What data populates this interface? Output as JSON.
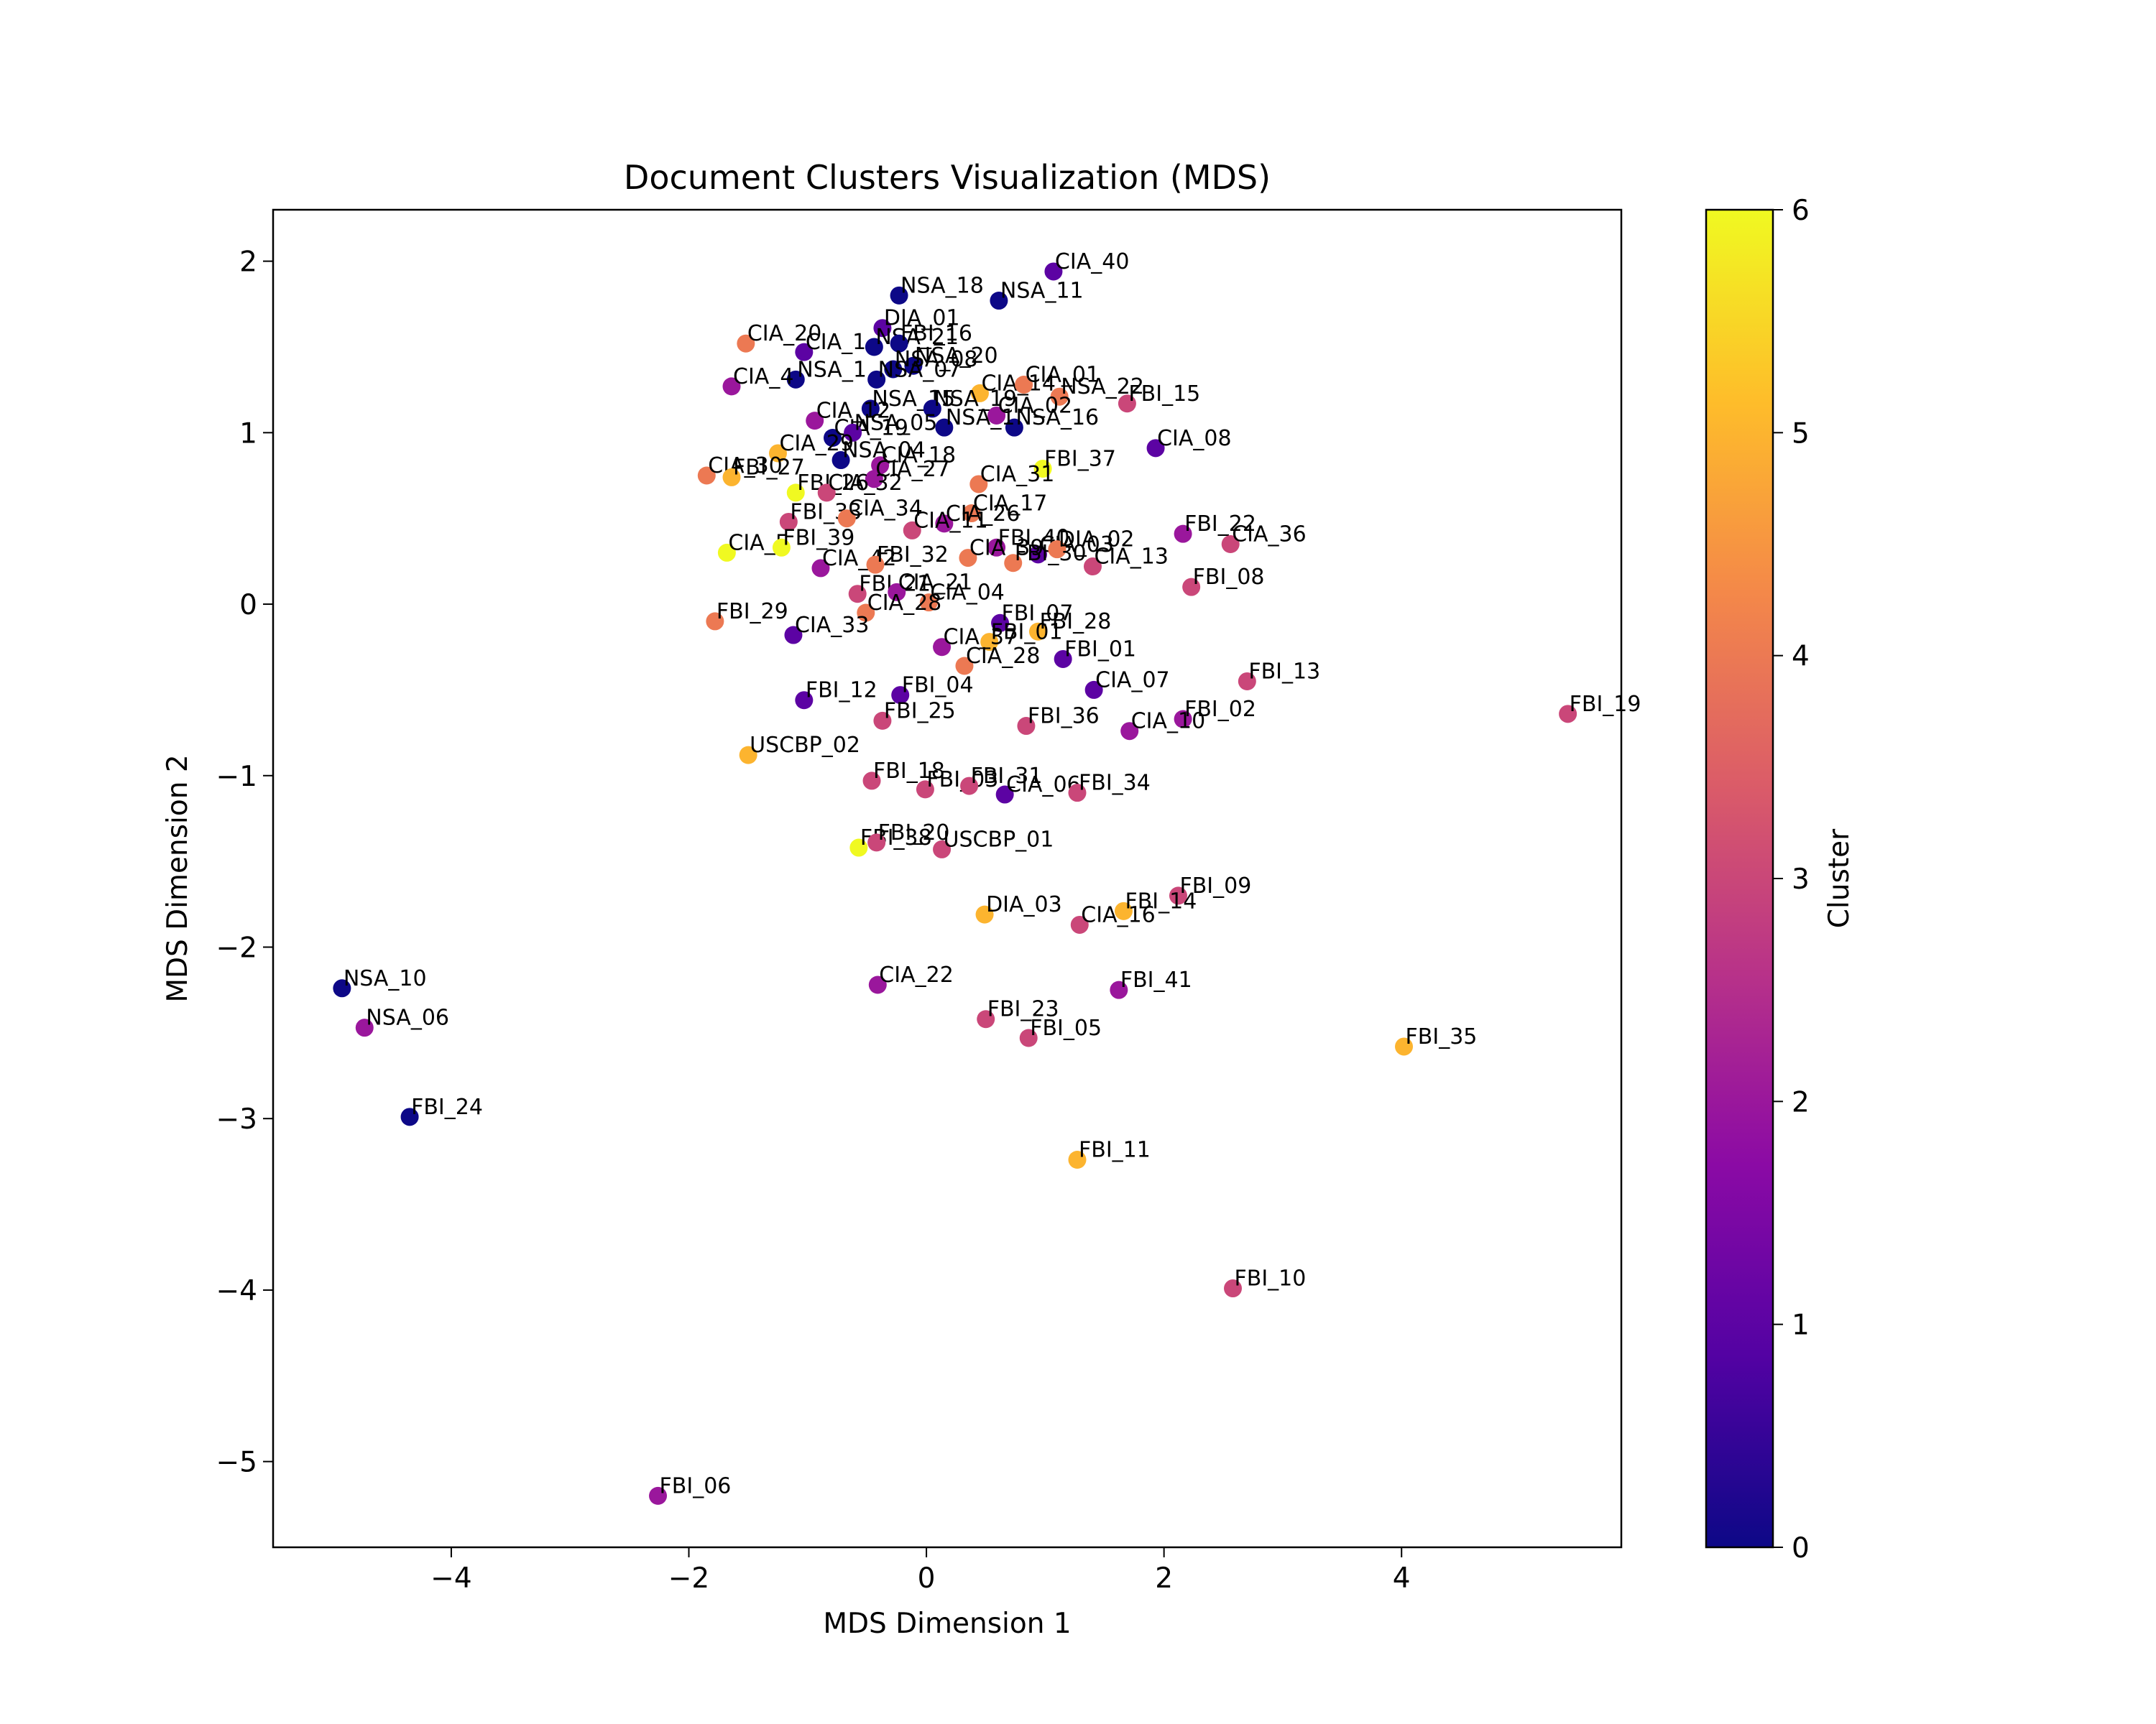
{
  "chart_data": {
    "type": "scatter",
    "title": "Document Clusters Visualization (MDS)",
    "xlabel": "MDS Dimension 1",
    "ylabel": "MDS Dimension 2",
    "xlim": [
      -5.5,
      5.85
    ],
    "ylim": [
      -5.5,
      2.3
    ],
    "xticks": [
      -4,
      -2,
      0,
      2,
      4
    ],
    "yticks": [
      -5,
      -4,
      -3,
      -2,
      -1,
      0,
      1,
      2
    ],
    "grid": false,
    "colormap": "plasma",
    "colorbar": {
      "label": "Cluster",
      "range": [
        0,
        6
      ],
      "ticks": [
        0,
        1,
        2,
        3,
        4,
        5,
        6
      ]
    },
    "points": [
      {
        "label": "CIA_40",
        "x": 1.07,
        "y": 1.94,
        "cluster": 1
      },
      {
        "label": "NSA_18",
        "x": -0.23,
        "y": 1.8,
        "cluster": 0
      },
      {
        "label": "NSA_11",
        "x": 0.61,
        "y": 1.77,
        "cluster": 0
      },
      {
        "label": "DIA_01",
        "x": -0.37,
        "y": 1.61,
        "cluster": 1
      },
      {
        "label": "CIA_20",
        "x": -1.52,
        "y": 1.52,
        "cluster": 4
      },
      {
        "label": "CIA_1",
        "x": -1.03,
        "y": 1.47,
        "cluster": 1
      },
      {
        "label": "NSA_21",
        "x": -0.44,
        "y": 1.5,
        "cluster": 0
      },
      {
        "label": "FBI_16",
        "x": -0.23,
        "y": 1.52,
        "cluster": 0
      },
      {
        "label": "NSA_20",
        "x": -0.11,
        "y": 1.39,
        "cluster": 0
      },
      {
        "label": "NSA_08",
        "x": -0.28,
        "y": 1.37,
        "cluster": 0
      },
      {
        "label": "NSA_07",
        "x": -0.42,
        "y": 1.31,
        "cluster": 0
      },
      {
        "label": "NSA_1",
        "x": -1.1,
        "y": 1.31,
        "cluster": 0
      },
      {
        "label": "CIA_4",
        "x": -1.64,
        "y": 1.27,
        "cluster": 2
      },
      {
        "label": "CIA_14",
        "x": 0.45,
        "y": 1.23,
        "cluster": 5
      },
      {
        "label": "CIA_01",
        "x": 0.82,
        "y": 1.28,
        "cluster": 4
      },
      {
        "label": "NSA_22",
        "x": 1.12,
        "y": 1.21,
        "cluster": 4
      },
      {
        "label": "FBI_15",
        "x": 1.69,
        "y": 1.17,
        "cluster": 3
      },
      {
        "label": "NSA_15",
        "x": -0.47,
        "y": 1.14,
        "cluster": 0
      },
      {
        "label": "NSA_19",
        "x": 0.05,
        "y": 1.14,
        "cluster": 0
      },
      {
        "label": "CIA_02",
        "x": 0.59,
        "y": 1.1,
        "cluster": 2
      },
      {
        "label": "NSA_16",
        "x": 0.74,
        "y": 1.03,
        "cluster": 0
      },
      {
        "label": "NSA_1",
        "x": 0.15,
        "y": 1.03,
        "cluster": 0
      },
      {
        "label": "CIA_08",
        "x": 1.93,
        "y": 0.91,
        "cluster": 1
      },
      {
        "label": "CIA_12",
        "x": -0.94,
        "y": 1.07,
        "cluster": 2
      },
      {
        "label": "CIA_19",
        "x": -0.79,
        "y": 0.97,
        "cluster": 0
      },
      {
        "label": "NSA_05",
        "x": -0.62,
        "y": 1.0,
        "cluster": 1
      },
      {
        "label": "CIA_29",
        "x": -1.25,
        "y": 0.88,
        "cluster": 5
      },
      {
        "label": "NSA_04",
        "x": -0.72,
        "y": 0.84,
        "cluster": 0
      },
      {
        "label": "CIA_18",
        "x": -0.39,
        "y": 0.81,
        "cluster": 2
      },
      {
        "label": "FBI_37",
        "x": 0.98,
        "y": 0.79,
        "cluster": 6
      },
      {
        "label": "CIA_30",
        "x": -1.85,
        "y": 0.75,
        "cluster": 4
      },
      {
        "label": "FBI_27",
        "x": -1.64,
        "y": 0.74,
        "cluster": 5
      },
      {
        "label": "CIA_27",
        "x": -0.44,
        "y": 0.73,
        "cluster": 2
      },
      {
        "label": "CIA_31",
        "x": 0.44,
        "y": 0.7,
        "cluster": 4
      },
      {
        "label": "FBI_26",
        "x": -1.1,
        "y": 0.65,
        "cluster": 6
      },
      {
        "label": "CIA_32",
        "x": -0.84,
        "y": 0.65,
        "cluster": 3
      },
      {
        "label": "CIA_17",
        "x": 0.38,
        "y": 0.53,
        "cluster": 4
      },
      {
        "label": "FBI_33",
        "x": -1.16,
        "y": 0.48,
        "cluster": 3
      },
      {
        "label": "CIA_34",
        "x": -0.67,
        "y": 0.5,
        "cluster": 4
      },
      {
        "label": "CIA_26",
        "x": 0.15,
        "y": 0.47,
        "cluster": 2
      },
      {
        "label": "CIA_11",
        "x": -0.12,
        "y": 0.43,
        "cluster": 3
      },
      {
        "label": "FBI_22",
        "x": 2.16,
        "y": 0.41,
        "cluster": 2
      },
      {
        "label": "CIA_36",
        "x": 2.56,
        "y": 0.35,
        "cluster": 3
      },
      {
        "label": "CIA_5",
        "x": -1.68,
        "y": 0.3,
        "cluster": 6
      },
      {
        "label": "FBI_39",
        "x": -1.22,
        "y": 0.33,
        "cluster": 6
      },
      {
        "label": "FBI_40",
        "x": 0.59,
        "y": 0.33,
        "cluster": 2
      },
      {
        "label": "CIA_03",
        "x": 0.94,
        "y": 0.29,
        "cluster": 1
      },
      {
        "label": "CIA_39",
        "x": 0.35,
        "y": 0.27,
        "cluster": 4
      },
      {
        "label": "DIA_02",
        "x": 1.1,
        "y": 0.32,
        "cluster": 4
      },
      {
        "label": "FBI_30",
        "x": 0.73,
        "y": 0.24,
        "cluster": 4
      },
      {
        "label": "CIA_42",
        "x": -0.89,
        "y": 0.21,
        "cluster": 2
      },
      {
        "label": "CIA_13",
        "x": 1.4,
        "y": 0.22,
        "cluster": 3
      },
      {
        "label": "FBI_32",
        "x": -0.43,
        "y": 0.23,
        "cluster": 4
      },
      {
        "label": "FBI_08",
        "x": 2.23,
        "y": 0.1,
        "cluster": 3
      },
      {
        "label": "FBI_21",
        "x": -0.58,
        "y": 0.06,
        "cluster": 3
      },
      {
        "label": "CIA_21",
        "x": -0.25,
        "y": 0.07,
        "cluster": 2
      },
      {
        "label": "CIA_04",
        "x": 0.02,
        "y": 0.01,
        "cluster": 4
      },
      {
        "label": "CIA_28",
        "x": -0.51,
        "y": -0.05,
        "cluster": 4
      },
      {
        "label": "FBI_29",
        "x": -1.78,
        "y": -0.1,
        "cluster": 4
      },
      {
        "label": "CIA_33",
        "x": -1.12,
        "y": -0.18,
        "cluster": 1
      },
      {
        "label": "FBI_07",
        "x": 0.62,
        "y": -0.11,
        "cluster": 1
      },
      {
        "label": "FBI_28",
        "x": 0.94,
        "y": -0.16,
        "cluster": 5
      },
      {
        "label": "FBI_01",
        "x": 0.53,
        "y": -0.22,
        "cluster": 5
      },
      {
        "label": "CIA_37",
        "x": 0.13,
        "y": -0.25,
        "cluster": 2
      },
      {
        "label": "FBI_01",
        "x": 1.15,
        "y": -0.32,
        "cluster": 1
      },
      {
        "label": "CIA_28",
        "x": 0.32,
        "y": -0.36,
        "cluster": 4
      },
      {
        "label": "CIA_07",
        "x": 1.41,
        "y": -0.5,
        "cluster": 1
      },
      {
        "label": "FBI_13",
        "x": 2.7,
        "y": -0.45,
        "cluster": 3
      },
      {
        "label": "FBI_12",
        "x": -1.03,
        "y": -0.56,
        "cluster": 1
      },
      {
        "label": "FBI_04",
        "x": -0.22,
        "y": -0.53,
        "cluster": 1
      },
      {
        "label": "FBI_19",
        "x": 5.4,
        "y": -0.64,
        "cluster": 3
      },
      {
        "label": "FBI_25",
        "x": -0.37,
        "y": -0.68,
        "cluster": 3
      },
      {
        "label": "FBI_36",
        "x": 0.84,
        "y": -0.71,
        "cluster": 3
      },
      {
        "label": "FBI_02",
        "x": 2.16,
        "y": -0.67,
        "cluster": 2
      },
      {
        "label": "CIA_10",
        "x": 1.71,
        "y": -0.74,
        "cluster": 2
      },
      {
        "label": "USCBP_02",
        "x": -1.5,
        "y": -0.88,
        "cluster": 5
      },
      {
        "label": "FBI_18",
        "x": -0.46,
        "y": -1.03,
        "cluster": 3
      },
      {
        "label": "FBI_03",
        "x": -0.01,
        "y": -1.08,
        "cluster": 3
      },
      {
        "label": "FBI_31",
        "x": 0.36,
        "y": -1.06,
        "cluster": 3
      },
      {
        "label": "CIA_06",
        "x": 0.66,
        "y": -1.11,
        "cluster": 1
      },
      {
        "label": "FBI_34",
        "x": 1.27,
        "y": -1.1,
        "cluster": 3
      },
      {
        "label": "FBI_38",
        "x": -0.57,
        "y": -1.42,
        "cluster": 6
      },
      {
        "label": "FBI_20",
        "x": -0.42,
        "y": -1.39,
        "cluster": 3
      },
      {
        "label": "USCBP_01",
        "x": 0.13,
        "y": -1.43,
        "cluster": 3
      },
      {
        "label": "FBI_09",
        "x": 2.12,
        "y": -1.7,
        "cluster": 3
      },
      {
        "label": "DIA_03",
        "x": 0.49,
        "y": -1.81,
        "cluster": 5
      },
      {
        "label": "FBI_14",
        "x": 1.66,
        "y": -1.79,
        "cluster": 5
      },
      {
        "label": "CIA_16",
        "x": 1.29,
        "y": -1.87,
        "cluster": 3
      },
      {
        "label": "NSA_10",
        "x": -4.92,
        "y": -2.24,
        "cluster": 0
      },
      {
        "label": "CIA_22",
        "x": -0.41,
        "y": -2.22,
        "cluster": 2
      },
      {
        "label": "FBI_41",
        "x": 1.62,
        "y": -2.25,
        "cluster": 2
      },
      {
        "label": "NSA_06",
        "x": -4.73,
        "y": -2.47,
        "cluster": 2
      },
      {
        "label": "FBI_23",
        "x": 0.5,
        "y": -2.42,
        "cluster": 3
      },
      {
        "label": "FBI_05",
        "x": 0.86,
        "y": -2.53,
        "cluster": 3
      },
      {
        "label": "FBI_35",
        "x": 4.02,
        "y": -2.58,
        "cluster": 5
      },
      {
        "label": "FBI_24",
        "x": -4.35,
        "y": -2.99,
        "cluster": 0
      },
      {
        "label": "FBI_11",
        "x": 1.27,
        "y": -3.24,
        "cluster": 5
      },
      {
        "label": "FBI_10",
        "x": 2.58,
        "y": -3.99,
        "cluster": 3
      },
      {
        "label": "FBI_06",
        "x": -2.26,
        "y": -5.2,
        "cluster": 2
      }
    ]
  }
}
